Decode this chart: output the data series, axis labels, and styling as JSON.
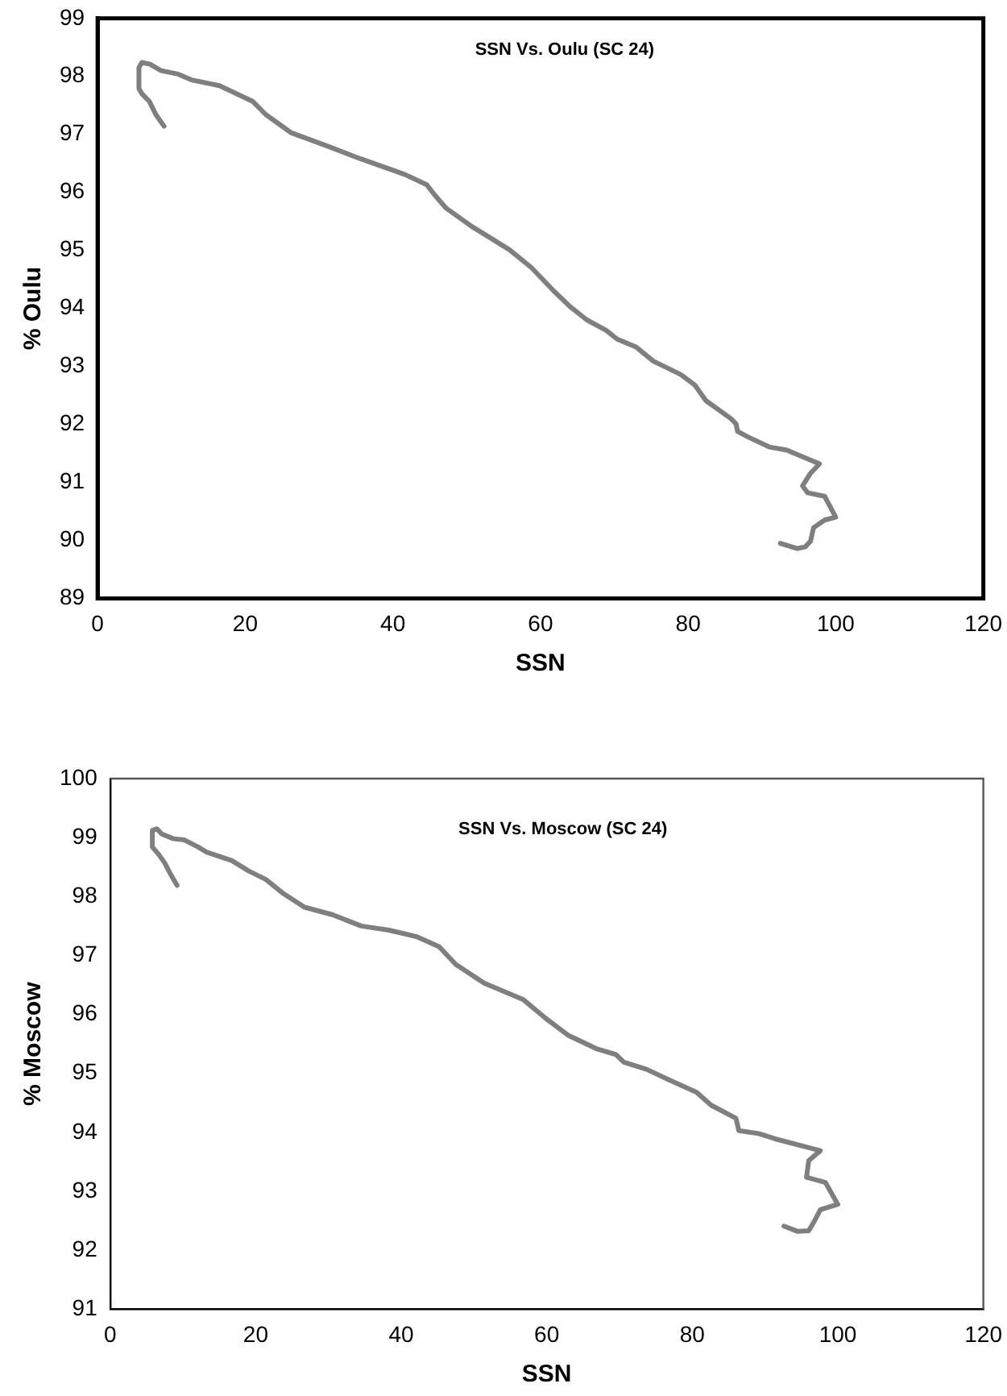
{
  "chart_data": [
    {
      "type": "line",
      "title": "SSN Vs. Oulu (SC 24)",
      "xlabel": "SSN",
      "ylabel": "% Oulu",
      "color": "#7f7f7f",
      "x": [
        9.0,
        7.9,
        7.0,
        6.0,
        5.6,
        5.6,
        6.0,
        7.1,
        8.6,
        10.9,
        12.7,
        16.5,
        21.0,
        22.8,
        26.2,
        31.1,
        35.6,
        41.6,
        44.6,
        45.7,
        47.2,
        50.6,
        55.8,
        58.8,
        61.8,
        64.0,
        66.3,
        68.9,
        70.4,
        73.0,
        75.3,
        79.0,
        80.9,
        82.4,
        85.8,
        86.5,
        86.7,
        88.0,
        91.0,
        93.3,
        97.8,
        96.6,
        95.5,
        96.2,
        98.5,
        100.0,
        98.5,
        97.0,
        96.6,
        95.9,
        94.8,
        92.5
      ],
      "values": [
        97.14,
        97.34,
        97.57,
        97.7,
        97.79,
        98.15,
        98.24,
        98.21,
        98.1,
        98.04,
        97.94,
        97.84,
        97.57,
        97.34,
        97.03,
        96.8,
        96.58,
        96.31,
        96.13,
        95.95,
        95.73,
        95.42,
        95.01,
        94.7,
        94.3,
        94.03,
        93.8,
        93.62,
        93.47,
        93.33,
        93.09,
        92.86,
        92.68,
        92.41,
        92.1,
        92.01,
        91.88,
        91.79,
        91.61,
        91.56,
        91.32,
        91.16,
        90.94,
        90.82,
        90.76,
        90.4,
        90.35,
        90.22,
        89.99,
        89.89,
        89.86,
        89.95
      ],
      "xlim": [
        0,
        120
      ],
      "xticks": [
        0,
        20,
        40,
        60,
        80,
        100,
        120
      ],
      "ylim": [
        89,
        99
      ],
      "yticks": [
        89,
        90,
        91,
        92,
        93,
        94,
        95,
        96,
        97,
        98,
        99
      ]
    },
    {
      "type": "line",
      "title": "SSN Vs. Moscow (SC 24)",
      "xlabel": "SSN",
      "ylabel": "% Moscow",
      "color": "#7f7f7f",
      "x": [
        9.2,
        8.3,
        7.5,
        6.7,
        5.8,
        5.8,
        6.4,
        7.1,
        8.7,
        10.2,
        12.1,
        13.3,
        16.7,
        19.1,
        21.4,
        23.7,
        26.7,
        30.6,
        34.5,
        38.3,
        42.1,
        45.2,
        47.5,
        51.4,
        56.8,
        59.9,
        62.9,
        66.8,
        69.5,
        70.6,
        73.7,
        76.8,
        80.6,
        82.6,
        86.0,
        86.4,
        89.1,
        91.4,
        97.6,
        96.0,
        95.7,
        98.3,
        100.0,
        97.6,
        96.8,
        96.0,
        94.5,
        92.6
      ],
      "values": [
        98.19,
        98.38,
        98.57,
        98.71,
        98.84,
        99.12,
        99.15,
        99.06,
        98.98,
        98.96,
        98.84,
        98.75,
        98.61,
        98.43,
        98.29,
        98.06,
        97.82,
        97.69,
        97.5,
        97.43,
        97.32,
        97.15,
        96.85,
        96.53,
        96.25,
        95.93,
        95.65,
        95.42,
        95.32,
        95.19,
        95.07,
        94.89,
        94.68,
        94.46,
        94.24,
        94.03,
        93.98,
        93.89,
        93.69,
        93.52,
        93.24,
        93.15,
        92.78,
        92.69,
        92.5,
        92.33,
        92.32,
        92.41
      ],
      "xlim": [
        0,
        120
      ],
      "xticks": [
        0,
        20,
        40,
        60,
        80,
        100,
        120
      ],
      "ylim": [
        91,
        100
      ],
      "yticks": [
        91,
        92,
        93,
        94,
        95,
        96,
        97,
        98,
        99,
        100
      ]
    }
  ]
}
